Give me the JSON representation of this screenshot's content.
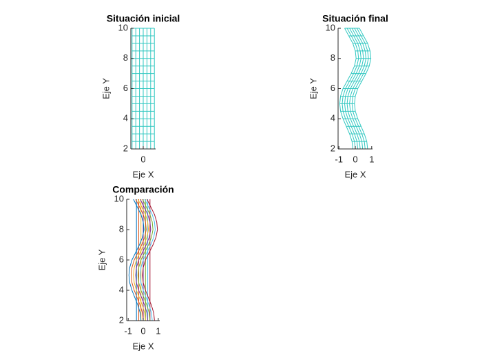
{
  "chart_data": [
    {
      "type": "mesh",
      "title": "Situación inicial",
      "xlabel": "Eje X",
      "ylabel": "Eje Y",
      "color": "#2ec7c0",
      "xlim": [
        -0.5,
        0.5
      ],
      "xticks": [
        0
      ],
      "ylim": [
        2,
        10
      ],
      "yticks": [
        2,
        4,
        6,
        8,
        10
      ],
      "y": [
        2,
        2.5,
        3,
        3.5,
        4,
        4.5,
        5,
        5.5,
        6,
        6.5,
        7,
        7.5,
        8,
        8.5,
        9,
        9.5,
        10
      ],
      "lines": [
        {
          "x": [
            -0.45,
            -0.45,
            -0.45,
            -0.45,
            -0.45,
            -0.45,
            -0.45,
            -0.45,
            -0.45,
            -0.45,
            -0.45,
            -0.45,
            -0.45,
            -0.45,
            -0.45,
            -0.45,
            -0.45
          ]
        },
        {
          "x": [
            -0.3,
            -0.3,
            -0.3,
            -0.3,
            -0.3,
            -0.3,
            -0.3,
            -0.3,
            -0.3,
            -0.3,
            -0.3,
            -0.3,
            -0.3,
            -0.3,
            -0.3,
            -0.3,
            -0.3
          ]
        },
        {
          "x": [
            -0.15,
            -0.15,
            -0.15,
            -0.15,
            -0.15,
            -0.15,
            -0.15,
            -0.15,
            -0.15,
            -0.15,
            -0.15,
            -0.15,
            -0.15,
            -0.15,
            -0.15,
            -0.15,
            -0.15
          ]
        },
        {
          "x": [
            0,
            0,
            0,
            0,
            0,
            0,
            0,
            0,
            0,
            0,
            0,
            0,
            0,
            0,
            0,
            0,
            0
          ]
        },
        {
          "x": [
            0.15,
            0.15,
            0.15,
            0.15,
            0.15,
            0.15,
            0.15,
            0.15,
            0.15,
            0.15,
            0.15,
            0.15,
            0.15,
            0.15,
            0.15,
            0.15,
            0.15
          ]
        },
        {
          "x": [
            0.3,
            0.3,
            0.3,
            0.3,
            0.3,
            0.3,
            0.3,
            0.3,
            0.3,
            0.3,
            0.3,
            0.3,
            0.3,
            0.3,
            0.3,
            0.3,
            0.3
          ]
        },
        {
          "x": [
            0.45,
            0.45,
            0.45,
            0.45,
            0.45,
            0.45,
            0.45,
            0.45,
            0.45,
            0.45,
            0.45,
            0.45,
            0.45,
            0.45,
            0.45,
            0.45,
            0.45
          ]
        }
      ]
    },
    {
      "type": "mesh",
      "title": "Situación final",
      "xlabel": "Eje X",
      "ylabel": "Eje Y",
      "color": "#2ec7c0",
      "xlim": [
        -1.05,
        1.05
      ],
      "xticks": [
        -1,
        0,
        1
      ],
      "ylim": [
        2,
        10
      ],
      "yticks": [
        2,
        4,
        6,
        8,
        10
      ],
      "y": [
        2,
        2.5,
        3,
        3.5,
        4,
        4.5,
        5,
        5.5,
        6,
        6.5,
        7,
        7.5,
        8,
        8.5,
        9,
        9.5,
        10
      ],
      "lines": [
        {
          "x": [
            -0.15,
            -0.2,
            -0.35,
            -0.55,
            -0.75,
            -0.9,
            -0.95,
            -0.9,
            -0.75,
            -0.5,
            -0.25,
            -0.05,
            0.05,
            0,
            -0.15,
            -0.4,
            -0.65
          ]
        },
        {
          "x": [
            0,
            -0.05,
            -0.2,
            -0.4,
            -0.6,
            -0.75,
            -0.8,
            -0.75,
            -0.6,
            -0.35,
            -0.1,
            0.1,
            0.2,
            0.15,
            0,
            -0.25,
            -0.5
          ]
        },
        {
          "x": [
            0.15,
            0.1,
            -0.05,
            -0.25,
            -0.45,
            -0.6,
            -0.65,
            -0.6,
            -0.45,
            -0.2,
            0.05,
            0.25,
            0.35,
            0.3,
            0.15,
            -0.1,
            -0.35
          ]
        },
        {
          "x": [
            0.3,
            0.25,
            0.1,
            -0.1,
            -0.3,
            -0.45,
            -0.5,
            -0.45,
            -0.3,
            -0.05,
            0.2,
            0.4,
            0.5,
            0.45,
            0.3,
            0.05,
            -0.2
          ]
        },
        {
          "x": [
            0.45,
            0.4,
            0.25,
            0.05,
            -0.15,
            -0.3,
            -0.35,
            -0.3,
            -0.15,
            0.1,
            0.35,
            0.55,
            0.65,
            0.6,
            0.45,
            0.2,
            -0.05
          ]
        },
        {
          "x": [
            0.6,
            0.55,
            0.4,
            0.2,
            0,
            -0.15,
            -0.2,
            -0.15,
            0,
            0.25,
            0.5,
            0.7,
            0.8,
            0.75,
            0.6,
            0.35,
            0.1
          ]
        },
        {
          "x": [
            0.75,
            0.7,
            0.55,
            0.35,
            0.15,
            0,
            -0.05,
            0,
            0.15,
            0.4,
            0.65,
            0.85,
            0.95,
            0.9,
            0.75,
            0.5,
            0.25
          ]
        }
      ]
    },
    {
      "type": "lines",
      "title": "Comparación",
      "xlabel": "Eje X",
      "ylabel": "Eje Y",
      "xlim": [
        -1.1,
        1.1
      ],
      "xticks": [
        -1,
        0,
        1
      ],
      "ylim": [
        2,
        10
      ],
      "yticks": [
        2,
        4,
        6,
        8,
        10
      ],
      "y": [
        2,
        2.5,
        3,
        3.5,
        4,
        4.5,
        5,
        5.5,
        6,
        6.5,
        7,
        7.5,
        8,
        8.5,
        9,
        9.5,
        10
      ],
      "lines": [
        {
          "color": "#0072bd",
          "x": [
            -0.45,
            -0.45,
            -0.45,
            -0.45,
            -0.45,
            -0.45,
            -0.45,
            -0.45,
            -0.45,
            -0.45,
            -0.45,
            -0.45,
            -0.45,
            -0.45,
            -0.45,
            -0.45,
            -0.45
          ]
        },
        {
          "color": "#d95319",
          "x": [
            -0.3,
            -0.3,
            -0.3,
            -0.3,
            -0.3,
            -0.3,
            -0.3,
            -0.3,
            -0.3,
            -0.3,
            -0.3,
            -0.3,
            -0.3,
            -0.3,
            -0.3,
            -0.3,
            -0.3
          ]
        },
        {
          "color": "#edb120",
          "x": [
            -0.15,
            -0.15,
            -0.15,
            -0.15,
            -0.15,
            -0.15,
            -0.15,
            -0.15,
            -0.15,
            -0.15,
            -0.15,
            -0.15,
            -0.15,
            -0.15,
            -0.15,
            -0.15,
            -0.15
          ]
        },
        {
          "color": "#7e2f8e",
          "x": [
            0,
            0,
            0,
            0,
            0,
            0,
            0,
            0,
            0,
            0,
            0,
            0,
            0,
            0,
            0,
            0,
            0
          ]
        },
        {
          "color": "#77ac30",
          "x": [
            0.15,
            0.15,
            0.15,
            0.15,
            0.15,
            0.15,
            0.15,
            0.15,
            0.15,
            0.15,
            0.15,
            0.15,
            0.15,
            0.15,
            0.15,
            0.15,
            0.15
          ]
        },
        {
          "color": "#4dbeee",
          "x": [
            0.3,
            0.3,
            0.3,
            0.3,
            0.3,
            0.3,
            0.3,
            0.3,
            0.3,
            0.3,
            0.3,
            0.3,
            0.3,
            0.3,
            0.3,
            0.3,
            0.3
          ]
        },
        {
          "color": "#a2142f",
          "x": [
            0.45,
            0.45,
            0.45,
            0.45,
            0.45,
            0.45,
            0.45,
            0.45,
            0.45,
            0.45,
            0.45,
            0.45,
            0.45,
            0.45,
            0.45,
            0.45,
            0.45
          ]
        },
        {
          "color": "#0072bd",
          "x": [
            -0.15,
            -0.2,
            -0.35,
            -0.55,
            -0.75,
            -0.9,
            -0.95,
            -0.9,
            -0.75,
            -0.5,
            -0.25,
            -0.05,
            0.05,
            0,
            -0.15,
            -0.4,
            -0.65
          ]
        },
        {
          "color": "#d95319",
          "x": [
            0,
            -0.05,
            -0.2,
            -0.4,
            -0.6,
            -0.75,
            -0.8,
            -0.75,
            -0.6,
            -0.35,
            -0.1,
            0.1,
            0.2,
            0.15,
            0,
            -0.25,
            -0.5
          ]
        },
        {
          "color": "#edb120",
          "x": [
            0.15,
            0.1,
            -0.05,
            -0.25,
            -0.45,
            -0.6,
            -0.65,
            -0.6,
            -0.45,
            -0.2,
            0.05,
            0.25,
            0.35,
            0.3,
            0.15,
            -0.1,
            -0.35
          ]
        },
        {
          "color": "#7e2f8e",
          "x": [
            0.3,
            0.25,
            0.1,
            -0.1,
            -0.3,
            -0.45,
            -0.5,
            -0.45,
            -0.3,
            -0.05,
            0.2,
            0.4,
            0.5,
            0.45,
            0.3,
            0.05,
            -0.2
          ]
        },
        {
          "color": "#77ac30",
          "x": [
            0.45,
            0.4,
            0.25,
            0.05,
            -0.15,
            -0.3,
            -0.35,
            -0.3,
            -0.15,
            0.1,
            0.35,
            0.55,
            0.65,
            0.6,
            0.45,
            0.2,
            -0.05
          ]
        },
        {
          "color": "#4dbeee",
          "x": [
            0.6,
            0.55,
            0.4,
            0.2,
            0,
            -0.15,
            -0.2,
            -0.15,
            0,
            0.25,
            0.5,
            0.7,
            0.8,
            0.75,
            0.6,
            0.35,
            0.1
          ]
        },
        {
          "color": "#a2142f",
          "x": [
            0.75,
            0.7,
            0.55,
            0.35,
            0.15,
            0,
            -0.05,
            0,
            0.15,
            0.4,
            0.65,
            0.85,
            0.95,
            0.9,
            0.75,
            0.5,
            0.25
          ]
        }
      ]
    }
  ]
}
